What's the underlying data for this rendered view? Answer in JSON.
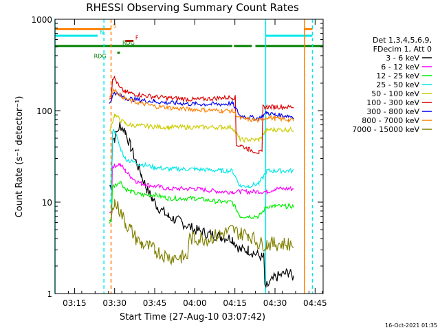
{
  "chart_data": {
    "type": "line",
    "title": "RHESSI Observing Summary Count Rates",
    "xlabel": "Start Time (27-Aug-10 03:07:42)",
    "ylabel": "Count Rate (s⁻¹ detector⁻¹)",
    "x_scale": "time (minutes after 03:07:42 UT)",
    "y_scale": "log",
    "xlim": [
      "03:07:42",
      "04:48:00"
    ],
    "ylim": [
      1,
      1000
    ],
    "x_ticks": [
      "03:15",
      "03:30",
      "03:45",
      "04:00",
      "04:15",
      "04:30",
      "04:45"
    ],
    "y_ticks": [
      "1",
      "10",
      "100",
      "1000"
    ],
    "legend": {
      "placement": "right",
      "header": [
        "Det 1,3,4,5,6,9,",
        "FDecim 1, Att 0"
      ],
      "entries": [
        {
          "label": "3 - 6 keV",
          "color": "#000000"
        },
        {
          "label": "6 - 12 keV",
          "color": "#ff00ff"
        },
        {
          "label": "12 - 25 keV",
          "color": "#00ee00"
        },
        {
          "label": "25 - 50 keV",
          "color": "#00e8e8"
        },
        {
          "label": "50 - 100 keV",
          "color": "#cccc00"
        },
        {
          "label": "100 - 300 keV",
          "color": "#dd0000"
        },
        {
          "label": "300 - 800 keV",
          "color": "#0000ee"
        },
        {
          "label": "800 - 7000 keV",
          "color": "#ff8000"
        },
        {
          "label": "7000 - 15000 keV",
          "color": "#808000"
        }
      ]
    },
    "flags": [
      {
        "label": "S",
        "color": "#ff8000",
        "level": 780,
        "segments": [
          [
            "03:07:42",
            "03:28:40"
          ],
          [
            "04:41:00",
            "04:44:00"
          ]
        ]
      },
      {
        "label": "N",
        "color": "#00e8e8",
        "level": 660,
        "segments": [
          [
            "03:07:42",
            "03:23:40"
          ],
          [
            "04:26:30",
            "04:44:00"
          ]
        ]
      },
      {
        "label": "F",
        "color": "#dd0000",
        "level": 580,
        "segments": [
          [
            "03:34:00",
            "03:37:00"
          ]
        ]
      },
      {
        "label": "RDG",
        "color": "#008000",
        "level": 510,
        "segments": [
          [
            "03:07:42",
            "04:14:00"
          ],
          [
            "04:14:40",
            "04:21:20"
          ],
          [
            "04:22:40",
            "04:48:00"
          ]
        ]
      },
      {
        "label": "RDG",
        "color": "#008000",
        "level": 430,
        "segments": [
          [
            "03:31:00",
            "03:32:00"
          ]
        ]
      }
    ],
    "markers": [
      {
        "color": "#00e8e8",
        "style": "solid",
        "time": "03:07:42"
      },
      {
        "color": "#00e8e8",
        "style": "dashed",
        "time": "03:26:00"
      },
      {
        "color": "#ff8000",
        "style": "dashed",
        "time": "03:28:40"
      },
      {
        "color": "#00e8e8",
        "style": "solid",
        "time": "04:26:30"
      },
      {
        "color": "#ff8000",
        "style": "solid",
        "time": "04:41:00"
      },
      {
        "color": "#00e8e8",
        "style": "dashed",
        "time": "04:44:00"
      }
    ],
    "series": [
      {
        "name": "3 - 6 keV",
        "color": "#000000",
        "x": [
          "03:28:00",
          "03:30:00",
          "03:32:00",
          "03:34:00",
          "03:36:00",
          "03:38:00",
          "03:40:00",
          "03:42:00",
          "03:44:00",
          "03:46:00",
          "03:50:00",
          "03:55:00",
          "04:00:00",
          "04:05:00",
          "04:10:00",
          "04:14:00",
          "04:17:00",
          "04:20:00",
          "04:25:00",
          "04:27:00",
          "04:30:00",
          "04:35:00",
          "04:37:00"
        ],
        "values": [
          15,
          50,
          70,
          60,
          40,
          28,
          20,
          14,
          11,
          9,
          7,
          6,
          5,
          4.5,
          4.2,
          4,
          3,
          3,
          2.5,
          1.2,
          1.5,
          1.7,
          1.5
        ]
      },
      {
        "name": "6 - 12 keV",
        "color": "#ff00ff",
        "x": [
          "03:28:00",
          "03:30:00",
          "03:32:00",
          "03:34:00",
          "03:36:00",
          "03:38:00",
          "03:40:00",
          "03:45:00",
          "03:50:00",
          "04:00:00",
          "04:10:00",
          "04:14:00",
          "04:17:00",
          "04:20:00",
          "04:24:00",
          "04:27:00",
          "04:30:00",
          "04:35:00",
          "04:37:00"
        ],
        "values": [
          8,
          25,
          26,
          22,
          19,
          17,
          16,
          15,
          14,
          14,
          13,
          13,
          13,
          13,
          13,
          13,
          14,
          14,
          14
        ]
      },
      {
        "name": "12 - 25 keV",
        "color": "#00ee00",
        "x": [
          "03:28:00",
          "03:30:00",
          "03:32:00",
          "03:34:00",
          "03:36:00",
          "03:40:00",
          "03:45:00",
          "03:50:00",
          "04:00:00",
          "04:10:00",
          "04:14:00",
          "04:17:00",
          "04:20:00",
          "04:24:00",
          "04:27:00",
          "04:30:00",
          "04:35:00",
          "04:37:00"
        ],
        "values": [
          6,
          15,
          17,
          14,
          13,
          12,
          12,
          11,
          11,
          10,
          10,
          7,
          7,
          7,
          9,
          9,
          9,
          9
        ]
      },
      {
        "name": "25 - 50 keV",
        "color": "#00e8e8",
        "x": [
          "03:28:00",
          "03:30:00",
          "03:32:00",
          "03:34:00",
          "03:36:00",
          "03:40:00",
          "03:45:00",
          "03:50:00",
          "04:00:00",
          "04:10:00",
          "04:14:00",
          "04:17:00",
          "04:20:00",
          "04:24:00",
          "04:27:00",
          "04:30:00",
          "04:35:00",
          "04:37:00"
        ],
        "values": [
          10,
          60,
          40,
          30,
          28,
          26,
          24,
          23,
          23,
          22,
          22,
          15,
          15,
          16,
          22,
          22,
          22,
          22
        ]
      },
      {
        "name": "50 - 100 keV",
        "color": "#cccc00",
        "x": [
          "03:28:00",
          "03:30:00",
          "03:32:00",
          "03:34:00",
          "03:36:00",
          "03:40:00",
          "03:45:00",
          "03:50:00",
          "04:00:00",
          "04:10:00",
          "04:14:00",
          "04:17:00",
          "04:20:00",
          "04:24:00",
          "04:27:00",
          "04:30:00",
          "04:35:00",
          "04:37:00"
        ],
        "values": [
          60,
          90,
          80,
          72,
          70,
          68,
          67,
          66,
          66,
          66,
          66,
          48,
          48,
          48,
          62,
          62,
          62,
          62
        ]
      },
      {
        "name": "100 - 300 keV",
        "color": "#dd0000",
        "x": [
          "03:28:00",
          "03:30:00",
          "03:32:00",
          "03:34:00",
          "03:36:00",
          "03:40:00",
          "03:45:00",
          "03:50:00",
          "03:55:00",
          "04:00:00",
          "04:10:00",
          "04:14:00",
          "04:17:00",
          "04:20:00",
          "04:24:00",
          "04:27:00",
          "04:30:00",
          "04:35:00",
          "04:37:00"
        ],
        "values": [
          140,
          230,
          175,
          160,
          155,
          148,
          142,
          138,
          135,
          132,
          138,
          140,
          42,
          38,
          35,
          110,
          110,
          110,
          110
        ]
      },
      {
        "name": "300 - 800 keV",
        "color": "#0000ee",
        "x": [
          "03:28:00",
          "03:30:00",
          "03:32:00",
          "03:34:00",
          "03:36:00",
          "03:40:00",
          "03:45:00",
          "03:50:00",
          "03:55:00",
          "04:00:00",
          "04:10:00",
          "04:14:00",
          "04:17:00",
          "04:20:00",
          "04:24:00",
          "04:27:00",
          "04:30:00",
          "04:35:00",
          "04:37:00"
        ],
        "values": [
          120,
          160,
          145,
          138,
          135,
          130,
          126,
          122,
          120,
          118,
          118,
          120,
          88,
          85,
          82,
          95,
          90,
          88,
          86
        ]
      },
      {
        "name": "800 - 7000 keV",
        "color": "#ff8000",
        "x": [
          "03:28:00",
          "03:30:00",
          "03:32:00",
          "03:34:00",
          "03:36:00",
          "03:40:00",
          "03:45:00",
          "03:50:00",
          "03:55:00",
          "04:00:00",
          "04:10:00",
          "04:14:00",
          "04:17:00",
          "04:20:00",
          "04:24:00",
          "04:27:00",
          "04:30:00",
          "04:35:00",
          "04:37:00"
        ],
        "values": [
          140,
          170,
          150,
          135,
          128,
          120,
          112,
          108,
          105,
          103,
          100,
          100,
          82,
          80,
          78,
          85,
          82,
          80,
          78
        ]
      },
      {
        "name": "7000 - 15000 keV",
        "color": "#808000",
        "x": [
          "03:28:00",
          "03:30:00",
          "03:32:00",
          "03:34:00",
          "03:36:00",
          "03:38:00",
          "03:40:00",
          "03:45:00",
          "03:50:00",
          "03:55:00",
          "04:00:00",
          "04:05:00",
          "04:10:00",
          "04:14:00",
          "04:17:00",
          "04:20:00",
          "04:24:00",
          "04:27:00",
          "04:30:00",
          "04:35:00",
          "04:37:00"
        ],
        "values": [
          6,
          10,
          8,
          6,
          5,
          4,
          3.5,
          3,
          2.5,
          2.5,
          4,
          4,
          4.5,
          5,
          4.5,
          4.5,
          3.5,
          3.5,
          3.5,
          3.5,
          3.5
        ]
      }
    ],
    "footer": "16-Oct-2021 01:35"
  }
}
